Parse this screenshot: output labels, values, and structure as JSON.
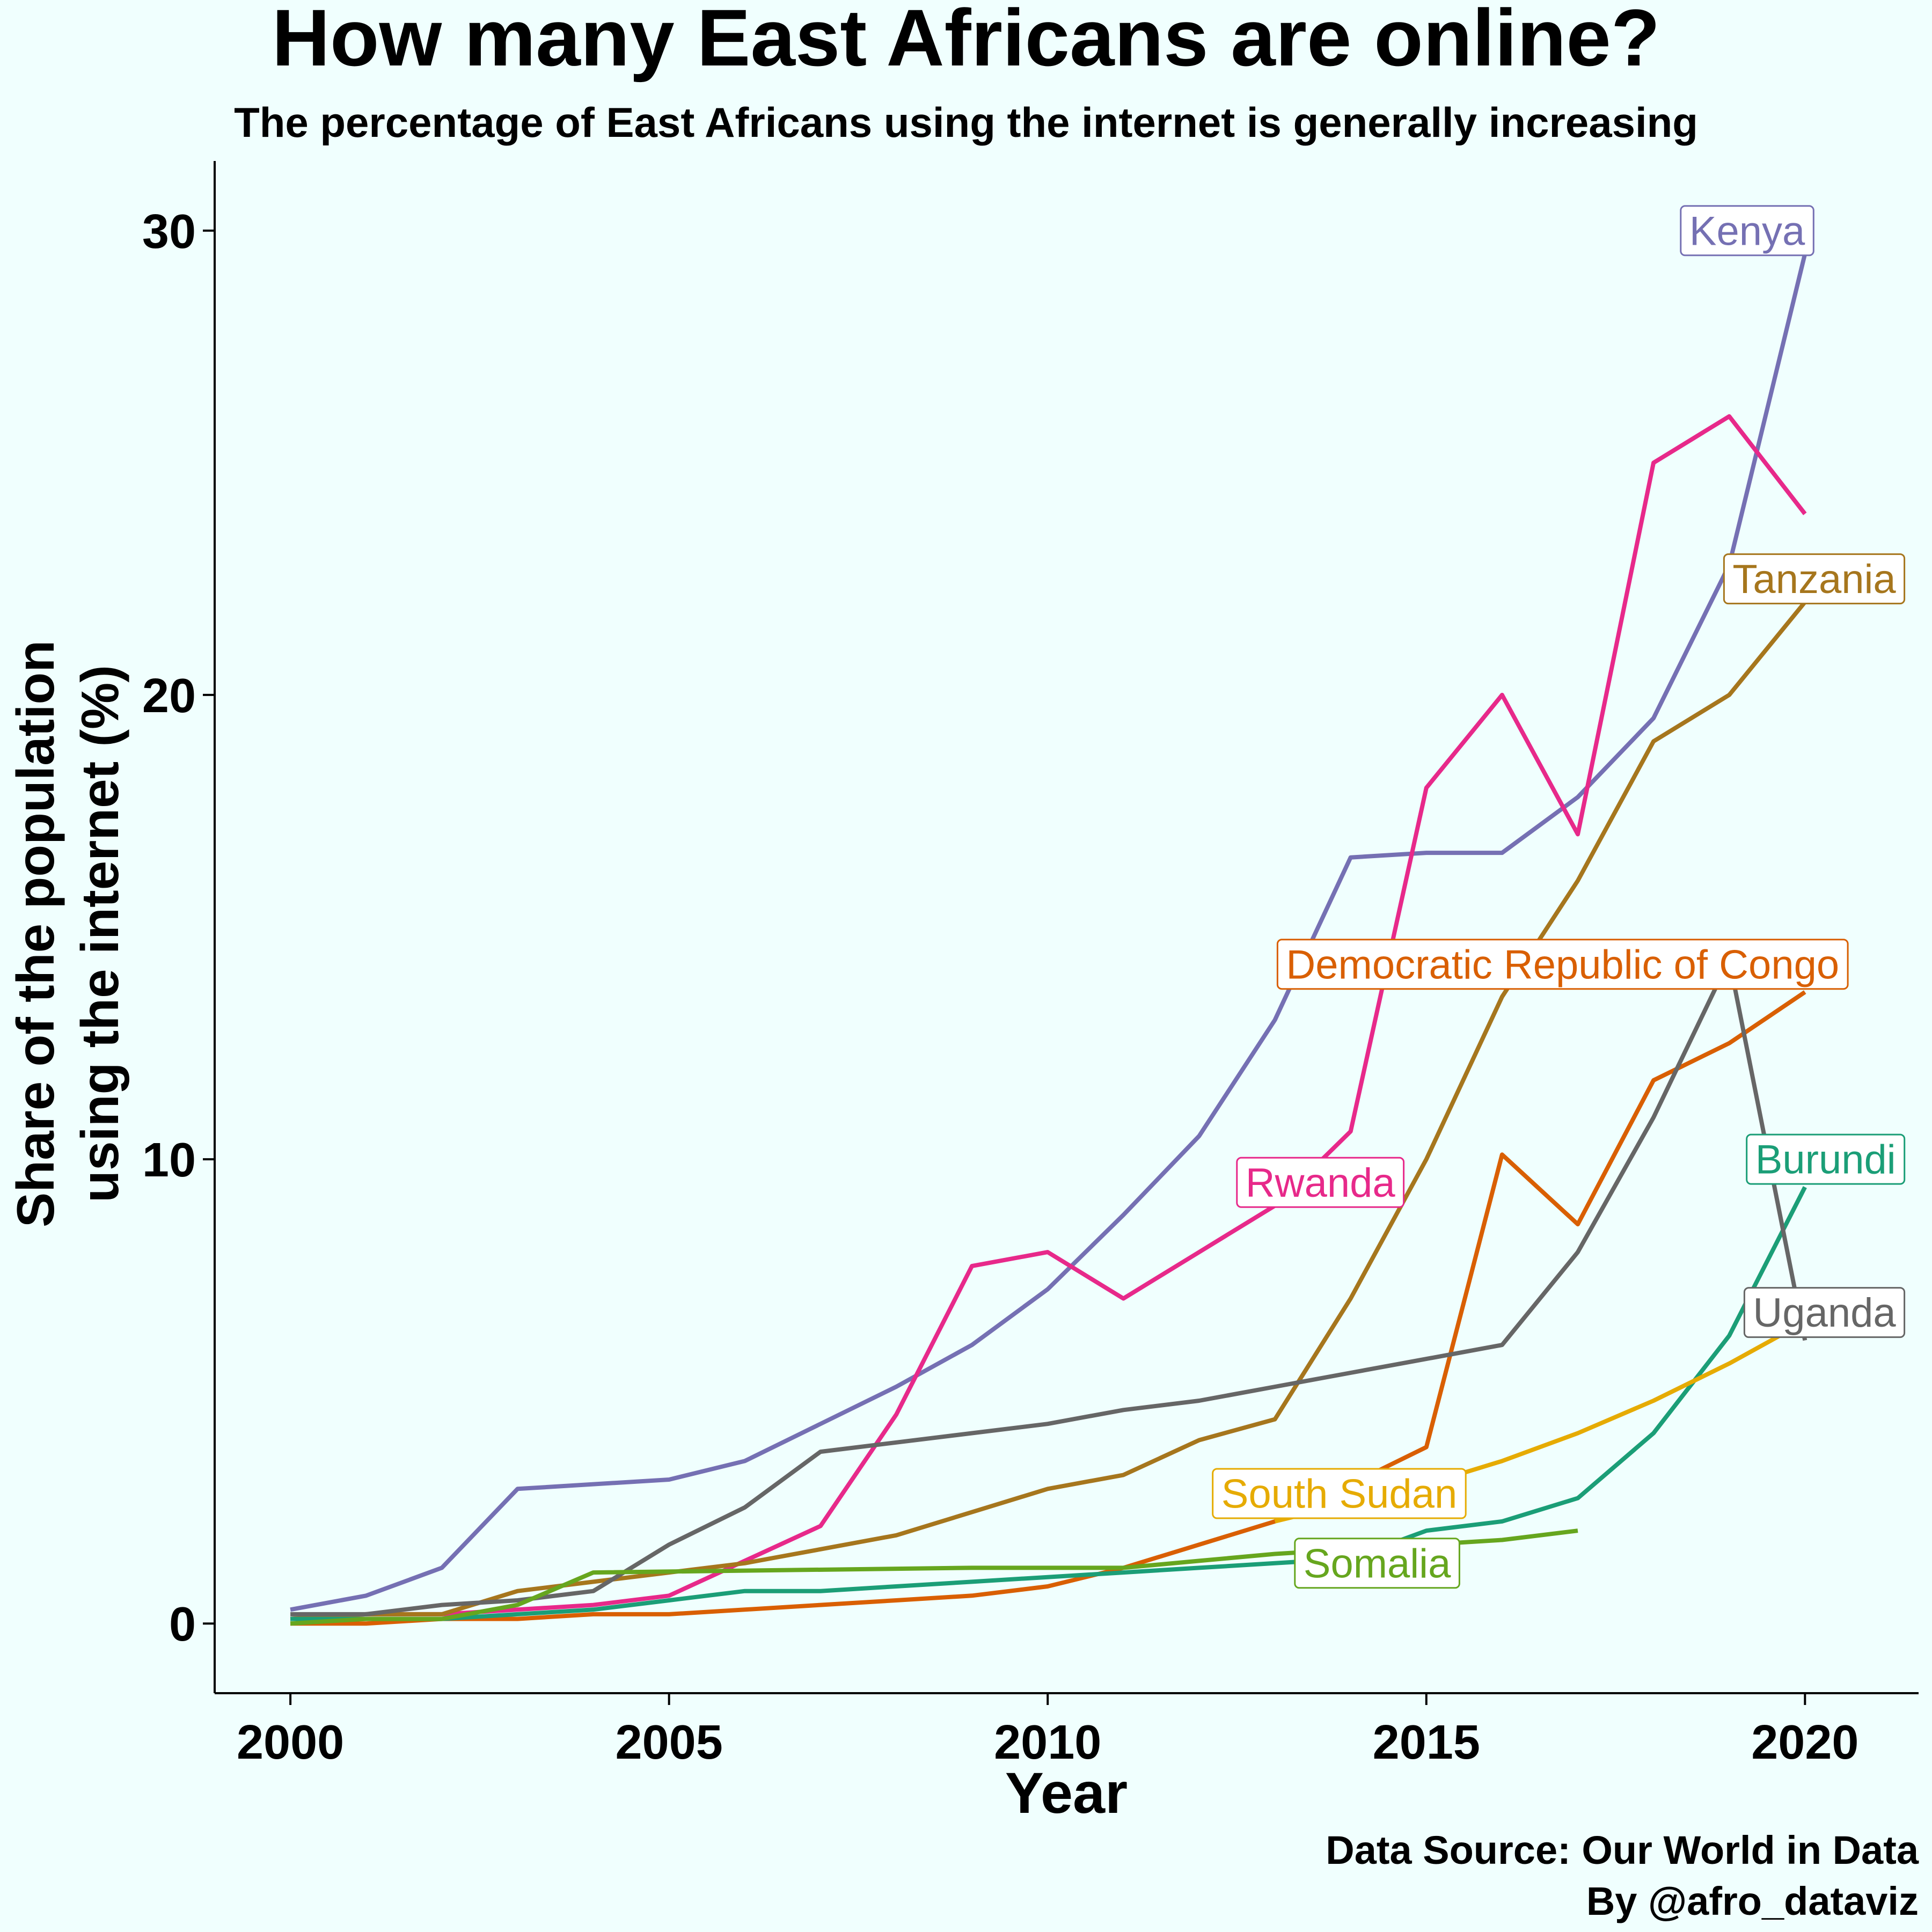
{
  "chart_data": {
    "type": "line",
    "title": "How many East Africans are online?",
    "subtitle": "The percentage of East Africans using the internet is generally increasing",
    "xlabel": "Year",
    "ylabel": [
      "Share of the population",
      "using the internet (%)"
    ],
    "xlim": [
      1999,
      2021.5
    ],
    "ylim": [
      -1.5,
      31.5
    ],
    "xticks": [
      2000,
      2005,
      2010,
      2015,
      2020
    ],
    "yticks": [
      0,
      10,
      20,
      30
    ],
    "grid": false,
    "legend": "none",
    "caption": [
      "Data Source: Our World in Data",
      "By @afro_dataviz"
    ],
    "series": [
      {
        "name": "Kenya",
        "color": "#7570b3",
        "points": [
          [
            2000,
            0.3
          ],
          [
            2001,
            0.6
          ],
          [
            2002,
            1.2
          ],
          [
            2003,
            2.9
          ],
          [
            2005,
            3.1
          ],
          [
            2006,
            3.5
          ],
          [
            2007,
            4.3
          ],
          [
            2008,
            5.1
          ],
          [
            2009,
            6.0
          ],
          [
            2010,
            7.2
          ],
          [
            2011,
            8.8
          ],
          [
            2012,
            10.5
          ],
          [
            2013,
            13.0
          ],
          [
            2014,
            16.5
          ],
          [
            2015,
            16.6
          ],
          [
            2016,
            16.6
          ],
          [
            2017,
            17.8
          ],
          [
            2018,
            19.5
          ],
          [
            2019,
            22.8
          ],
          [
            2020,
            29.5
          ]
        ],
        "label_at": [
          2020,
          30.0
        ],
        "label_align": "end"
      },
      {
        "name": "Rwanda",
        "color": "#e7298a",
        "points": [
          [
            2000,
            0.1
          ],
          [
            2001,
            0.2
          ],
          [
            2002,
            0.2
          ],
          [
            2003,
            0.3
          ],
          [
            2004,
            0.4
          ],
          [
            2005,
            0.6
          ],
          [
            2007,
            2.1
          ],
          [
            2008,
            4.5
          ],
          [
            2009,
            7.7
          ],
          [
            2010,
            8.0
          ],
          [
            2011,
            7.0
          ],
          [
            2012,
            8.0
          ],
          [
            2013,
            9.0
          ],
          [
            2014,
            10.6
          ],
          [
            2015,
            18.0
          ],
          [
            2016,
            20.0
          ],
          [
            2017,
            17.0
          ],
          [
            2018,
            25.0
          ],
          [
            2019,
            26.0
          ],
          [
            2020,
            23.9
          ]
        ],
        "label_at": [
          2013.6,
          9.5
        ],
        "label_align": "middle"
      },
      {
        "name": "Tanzania",
        "color": "#a6761d",
        "points": [
          [
            2000,
            0.1
          ],
          [
            2001,
            0.2
          ],
          [
            2002,
            0.2
          ],
          [
            2003,
            0.7
          ],
          [
            2004,
            0.9
          ],
          [
            2005,
            1.1
          ],
          [
            2006,
            1.3
          ],
          [
            2007,
            1.6
          ],
          [
            2008,
            1.9
          ],
          [
            2009,
            2.4
          ],
          [
            2010,
            2.9
          ],
          [
            2011,
            3.2
          ],
          [
            2012,
            3.95
          ],
          [
            2013,
            4.4
          ],
          [
            2014,
            7.0
          ],
          [
            2015,
            10.0
          ],
          [
            2016,
            13.5
          ],
          [
            2017,
            16.0
          ],
          [
            2018,
            19.0
          ],
          [
            2019,
            20.0
          ],
          [
            2020,
            22.0
          ]
        ],
        "label_at": [
          2021.2,
          22.5
        ],
        "label_align": "end"
      },
      {
        "name": "Democratic Republic of Congo",
        "color": "#d95f02",
        "points": [
          [
            2000,
            0.0
          ],
          [
            2001,
            0.0
          ],
          [
            2002,
            0.1
          ],
          [
            2003,
            0.1
          ],
          [
            2004,
            0.2
          ],
          [
            2005,
            0.2
          ],
          [
            2006,
            0.3
          ],
          [
            2007,
            0.4
          ],
          [
            2008,
            0.5
          ],
          [
            2009,
            0.6
          ],
          [
            2010,
            0.8
          ],
          [
            2011,
            1.2
          ],
          [
            2012,
            1.7
          ],
          [
            2013,
            2.2
          ],
          [
            2014,
            3.0
          ],
          [
            2015,
            3.8
          ],
          [
            2016,
            10.1
          ],
          [
            2017,
            8.6
          ],
          [
            2018,
            11.7
          ],
          [
            2019,
            12.5
          ],
          [
            2020,
            13.6
          ]
        ],
        "label_at": [
          2016.8,
          14.2
        ],
        "label_align": "middle"
      },
      {
        "name": "Burundi",
        "color": "#1b9e77",
        "points": [
          [
            2000,
            0.1
          ],
          [
            2001,
            0.1
          ],
          [
            2002,
            0.1
          ],
          [
            2003,
            0.2
          ],
          [
            2004,
            0.3
          ],
          [
            2005,
            0.5
          ],
          [
            2006,
            0.7
          ],
          [
            2007,
            0.7
          ],
          [
            2008,
            0.8
          ],
          [
            2009,
            0.9
          ],
          [
            2010,
            1.0
          ],
          [
            2011,
            1.1
          ],
          [
            2012,
            1.2
          ],
          [
            2013,
            1.3
          ],
          [
            2014,
            1.4
          ],
          [
            2015,
            2.0
          ],
          [
            2016,
            2.2
          ],
          [
            2017,
            2.7
          ],
          [
            2018,
            4.1
          ],
          [
            2019,
            6.2
          ],
          [
            2020,
            9.4
          ]
        ],
        "label_at": [
          2021.2,
          10.0
        ],
        "label_align": "end"
      },
      {
        "name": "Uganda",
        "color": "#666666",
        "points": [
          [
            2000,
            0.2
          ],
          [
            2001,
            0.2
          ],
          [
            2002,
            0.4
          ],
          [
            2003,
            0.5
          ],
          [
            2004,
            0.7
          ],
          [
            2005,
            1.7
          ],
          [
            2006,
            2.5
          ],
          [
            2007,
            3.7
          ],
          [
            2008,
            3.9
          ],
          [
            2009,
            4.1
          ],
          [
            2010,
            4.3
          ],
          [
            2011,
            4.6
          ],
          [
            2012,
            4.8
          ],
          [
            2013,
            5.1
          ],
          [
            2014,
            5.4
          ],
          [
            2015,
            5.7
          ],
          [
            2016,
            6.0
          ],
          [
            2017,
            8.0
          ],
          [
            2018,
            10.9
          ],
          [
            2019,
            14.3
          ],
          [
            2020,
            6.1
          ]
        ],
        "label_at": [
          2021.2,
          6.7
        ],
        "label_align": "end"
      },
      {
        "name": "South Sudan",
        "color": "#e6ab02",
        "points": [
          [
            2013,
            2.2
          ],
          [
            2014,
            2.6
          ],
          [
            2015,
            3.0
          ],
          [
            2016,
            3.5
          ],
          [
            2017,
            4.1
          ],
          [
            2018,
            4.8
          ],
          [
            2019,
            5.6
          ],
          [
            2020,
            6.5
          ]
        ],
        "label_at": [
          2013.85,
          2.8
        ],
        "label_align": "middle"
      },
      {
        "name": "Somalia",
        "color": "#66a61e",
        "points": [
          [
            2000,
            0.0
          ],
          [
            2001,
            0.1
          ],
          [
            2002,
            0.1
          ],
          [
            2003,
            0.4
          ],
          [
            2004,
            1.1
          ],
          [
            2009,
            1.2
          ],
          [
            2011,
            1.2
          ],
          [
            2012,
            1.35
          ],
          [
            2013,
            1.5
          ],
          [
            2014,
            1.6
          ],
          [
            2015,
            1.7
          ],
          [
            2016,
            1.8
          ],
          [
            2017,
            2.0
          ]
        ],
        "label_at": [
          2014.35,
          1.3
        ],
        "label_align": "middle"
      }
    ]
  }
}
